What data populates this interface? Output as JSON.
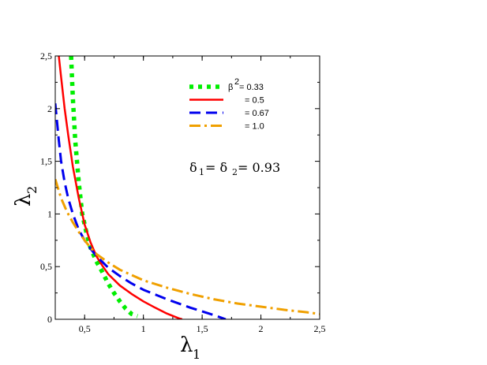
{
  "chart_data": {
    "type": "line",
    "xlabel": "λ",
    "xlabel_sub": "1",
    "ylabel": "λ",
    "ylabel_sub": "2",
    "xlim": [
      0.25,
      2.5
    ],
    "ylim": [
      0,
      2.5
    ],
    "xticks": [
      {
        "value": 0.5,
        "label": "0,5"
      },
      {
        "value": 1,
        "label": "1"
      },
      {
        "value": 1.5,
        "label": "1,5"
      },
      {
        "value": 2,
        "label": "2"
      },
      {
        "value": 2.5,
        "label": "2,5"
      }
    ],
    "yticks": [
      {
        "value": 0,
        "label": "0"
      },
      {
        "value": 0.5,
        "label": "0,5"
      },
      {
        "value": 1,
        "label": "1"
      },
      {
        "value": 1.5,
        "label": "1,5"
      },
      {
        "value": 2,
        "label": "2"
      },
      {
        "value": 2.5,
        "label": "2,5"
      }
    ],
    "annotation": {
      "d1": "δ",
      "s1": "1",
      "mid": " = δ",
      "s2": "2",
      "tail": " = 0.93"
    },
    "legend_position": "top-right",
    "series": [
      {
        "name": "β² = 0.33",
        "legend_label": "= 0.33",
        "legend_prefix": "β",
        "legend_sup": "2",
        "color": "#00ee00",
        "style": "dotted",
        "x": [
          0.385,
          0.4,
          0.42,
          0.45,
          0.48,
          0.52,
          0.55,
          0.6,
          0.65,
          0.7,
          0.75,
          0.8,
          0.85,
          0.9,
          0.95
        ],
        "y": [
          2.5,
          2.1,
          1.7,
          1.3,
          1.0,
          0.8,
          0.68,
          0.55,
          0.45,
          0.34,
          0.25,
          0.17,
          0.1,
          0.05,
          0.03
        ]
      },
      {
        "name": "β² = 0.5",
        "legend_label": "= 0.5",
        "color": "#ff0000",
        "style": "solid",
        "x": [
          0.28,
          0.3,
          0.33,
          0.36,
          0.4,
          0.45,
          0.5,
          0.55,
          0.6,
          0.65,
          0.7,
          0.8,
          0.9,
          1.0,
          1.1,
          1.2,
          1.3,
          1.33
        ],
        "y": [
          2.5,
          2.3,
          2.0,
          1.75,
          1.45,
          1.15,
          0.9,
          0.73,
          0.6,
          0.51,
          0.43,
          0.32,
          0.24,
          0.17,
          0.11,
          0.055,
          0.01,
          0.0
        ]
      },
      {
        "name": "β² = 0.67",
        "legend_label": "= 0.67",
        "color": "#0000ee",
        "style": "dashed",
        "x": [
          0.25,
          0.28,
          0.3,
          0.33,
          0.36,
          0.4,
          0.45,
          0.5,
          0.55,
          0.6,
          0.7,
          0.8,
          0.9,
          1.0,
          1.2,
          1.4,
          1.6,
          1.7
        ],
        "y": [
          2.05,
          1.7,
          1.5,
          1.3,
          1.15,
          1.0,
          0.85,
          0.75,
          0.67,
          0.6,
          0.49,
          0.41,
          0.34,
          0.28,
          0.19,
          0.11,
          0.04,
          0.0
        ]
      },
      {
        "name": "β² = 1.0",
        "legend_label": "= 1.0",
        "color": "#f0a000",
        "style": "dashdot",
        "x": [
          0.25,
          0.3,
          0.35,
          0.4,
          0.45,
          0.5,
          0.55,
          0.6,
          0.7,
          0.8,
          0.9,
          1.0,
          1.2,
          1.4,
          1.6,
          1.8,
          2.0,
          2.2,
          2.4,
          2.5
        ],
        "y": [
          1.33,
          1.15,
          1.02,
          0.92,
          0.83,
          0.75,
          0.68,
          0.62,
          0.54,
          0.47,
          0.42,
          0.37,
          0.3,
          0.24,
          0.19,
          0.15,
          0.12,
          0.09,
          0.065,
          0.05
        ]
      }
    ]
  }
}
